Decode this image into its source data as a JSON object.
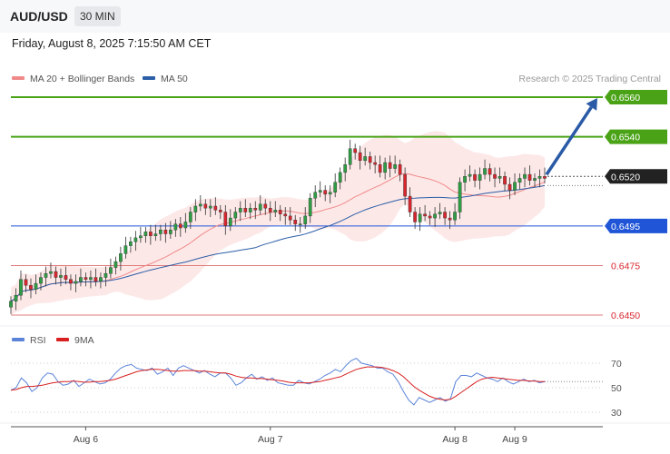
{
  "header": {
    "symbol": "AUD/USD",
    "timeframe": "30 MIN"
  },
  "datetime": "Friday, August 8, 2025 7:15:50 AM CET",
  "credit": "Research © 2025 Trading Central",
  "colors": {
    "bull": "#2e9e44",
    "bear": "#d8262e",
    "ma20": "#f08a8a",
    "ma50": "#2b5ea7",
    "band": "rgba(248,190,190,0.35)",
    "resistance": "#4aa317",
    "support": "#e07b7b",
    "pivot": "#1f55d6",
    "current": "#222222",
    "arrow": "#2a5aa6",
    "rsi": "#5b84d8",
    "rsi_ma": "#d82020"
  },
  "chart_data": [
    {
      "type": "candlestick",
      "title": "AUD/USD",
      "timeframe": "30 MIN",
      "ylim": [
        0.6443,
        0.6567
      ],
      "legend": [
        {
          "name": "MA 20 + Bollinger Bands",
          "color": "#f08a8a"
        },
        {
          "name": "MA 50",
          "color": "#2b5ea7"
        }
      ],
      "x_tick_labels": [
        {
          "label": "Aug 6",
          "index": 15
        },
        {
          "label": "Aug 7",
          "index": 52
        },
        {
          "label": "Aug 8",
          "index": 89
        },
        {
          "label": "Aug 9",
          "index": 101
        }
      ],
      "levels": [
        {
          "value": 0.656,
          "label": "0.6560",
          "kind": "resistance"
        },
        {
          "value": 0.654,
          "label": "0.6540",
          "kind": "resistance"
        },
        {
          "value": 0.652,
          "label": "0.6520",
          "kind": "current"
        },
        {
          "value": 0.6495,
          "label": "0.6495",
          "kind": "pivot"
        },
        {
          "value": 0.6475,
          "label": "0.6475",
          "kind": "support"
        },
        {
          "value": 0.645,
          "label": "0.6450",
          "kind": "support"
        }
      ],
      "projection": {
        "from": 0.652,
        "to": 0.656
      },
      "closes": [
        0.6457,
        0.646,
        0.6468,
        0.6465,
        0.6463,
        0.6466,
        0.6469,
        0.6471,
        0.6472,
        0.6469,
        0.647,
        0.6468,
        0.6466,
        0.6467,
        0.6469,
        0.6468,
        0.6469,
        0.6467,
        0.6469,
        0.6471,
        0.6474,
        0.6477,
        0.6481,
        0.6485,
        0.6487,
        0.6489,
        0.649,
        0.6492,
        0.649,
        0.6491,
        0.6493,
        0.6491,
        0.6493,
        0.6496,
        0.6494,
        0.6497,
        0.6502,
        0.6505,
        0.6506,
        0.6504,
        0.6505,
        0.6503,
        0.6502,
        0.6495,
        0.6499,
        0.6502,
        0.6504,
        0.6502,
        0.6504,
        0.6503,
        0.6506,
        0.6504,
        0.6502,
        0.6503,
        0.6501,
        0.65,
        0.6498,
        0.6496,
        0.6496,
        0.65,
        0.6509,
        0.6512,
        0.6513,
        0.6511,
        0.6512,
        0.6517,
        0.6522,
        0.6526,
        0.6534,
        0.6532,
        0.6528,
        0.653,
        0.6527,
        0.6526,
        0.6522,
        0.6527,
        0.6524,
        0.6526,
        0.6521,
        0.651,
        0.6502,
        0.6497,
        0.6501,
        0.65,
        0.6499,
        0.6501,
        0.6502,
        0.6499,
        0.6498,
        0.6502,
        0.6517,
        0.652,
        0.6521,
        0.6518,
        0.6521,
        0.6524,
        0.6521,
        0.6519,
        0.652,
        0.6516,
        0.6513,
        0.6517,
        0.6519,
        0.6521,
        0.6518,
        0.6519,
        0.652,
        0.6519
      ]
    },
    {
      "type": "line",
      "title": "RSI",
      "legend": [
        {
          "name": "RSI",
          "color": "#5b84d8"
        },
        {
          "name": "9MA",
          "color": "#d82020"
        }
      ],
      "ylim": [
        20,
        80
      ],
      "yticks": [
        30,
        50,
        70
      ],
      "rsi": [
        48,
        50,
        58,
        54,
        47,
        50,
        58,
        62,
        61,
        55,
        52,
        53,
        56,
        51,
        54,
        57,
        55,
        53,
        54,
        57,
        62,
        66,
        68,
        69,
        66,
        65,
        64,
        66,
        61,
        63,
        66,
        60,
        66,
        68,
        66,
        64,
        62,
        64,
        61,
        59,
        62,
        62,
        58,
        52,
        54,
        58,
        61,
        57,
        59,
        56,
        58,
        54,
        53,
        52,
        52,
        56,
        54,
        53,
        55,
        57,
        60,
        62,
        65,
        63,
        68,
        72,
        74,
        70,
        69,
        68,
        66,
        66,
        63,
        61,
        55,
        47,
        40,
        36,
        42,
        40,
        38,
        40,
        42,
        39,
        41,
        55,
        60,
        60,
        59,
        62,
        60,
        58,
        57,
        55,
        58,
        55,
        53,
        55,
        57,
        55,
        56,
        54,
        55
      ],
      "rsi_ma": [
        48,
        48.5,
        50,
        51,
        51,
        51.5,
        52,
        53,
        54,
        54.5,
        55,
        55,
        55.5,
        55,
        54.5,
        54.5,
        55,
        55,
        55.5,
        56,
        57,
        58.5,
        60,
        61.5,
        63,
        64,
        64.5,
        65,
        65,
        64.5,
        64,
        63.5,
        63.5,
        64,
        64,
        64,
        63.5,
        63.5,
        63,
        62.5,
        62,
        62,
        61,
        59.5,
        58.5,
        58,
        58,
        57.5,
        57.5,
        57,
        56.5,
        56,
        55.5,
        54.5,
        54,
        54,
        54,
        54,
        54.5,
        55,
        56,
        57,
        58,
        59,
        61,
        63,
        65,
        66,
        67,
        67,
        67,
        66.5,
        65.5,
        64,
        62,
        59,
        55,
        51,
        48,
        45.5,
        43,
        41.5,
        40.5,
        40,
        40.5,
        43,
        46,
        49,
        52,
        55,
        57,
        58,
        58.5,
        58,
        57.5,
        57,
        56.5,
        56,
        56,
        55.5,
        55.5,
        55,
        55
      ]
    }
  ]
}
